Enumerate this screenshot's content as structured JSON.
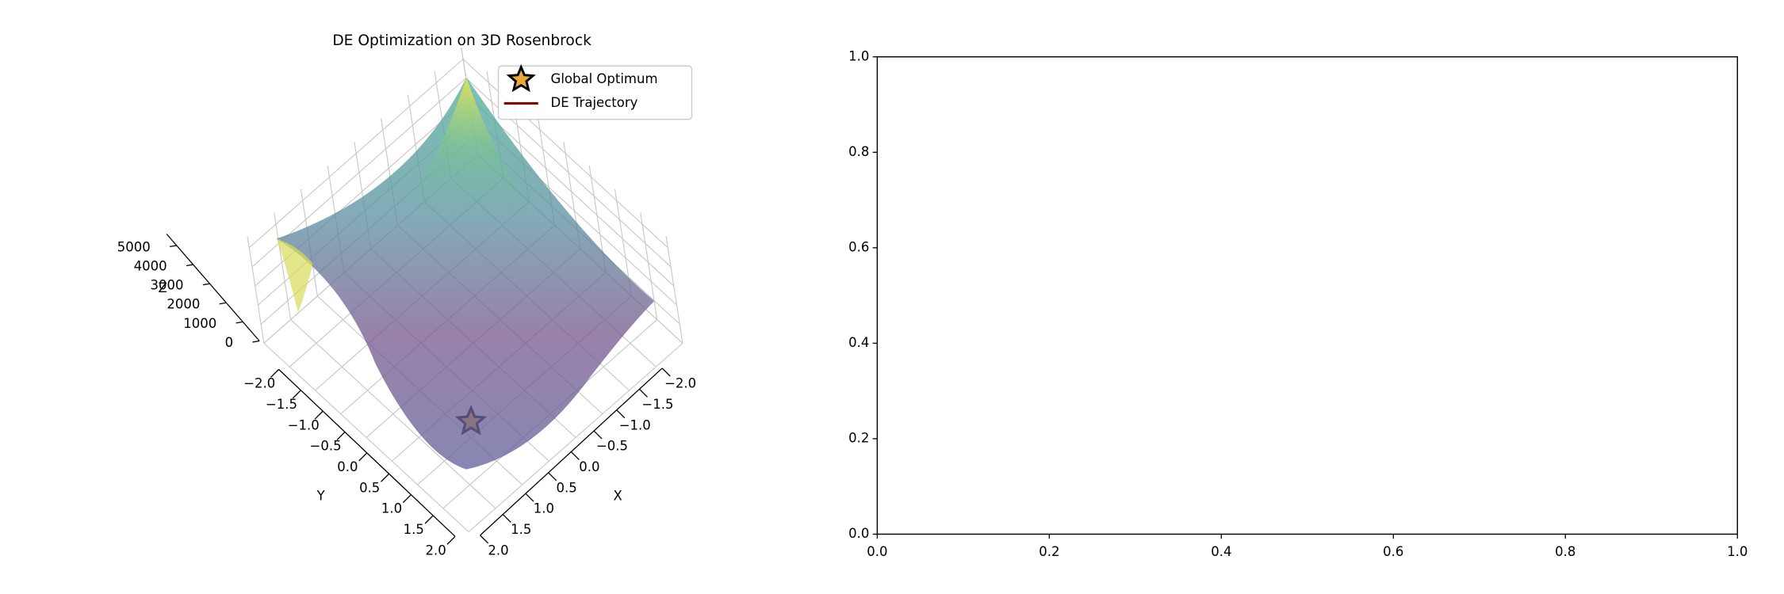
{
  "chart_data": [
    {
      "type": "surface3d",
      "title": "DE Optimization on 3D Rosenbrock",
      "xlabel": "X",
      "ylabel": "Y",
      "zlabel": "Z",
      "xlim": [
        -2,
        2
      ],
      "ylim": [
        -2,
        2
      ],
      "zlim": [
        0,
        5600
      ],
      "xticks": [
        {
          "value": -2,
          "label": "−2.0"
        },
        {
          "value": -1.5,
          "label": "−1.5"
        },
        {
          "value": -1,
          "label": "−1.0"
        },
        {
          "value": -0.5,
          "label": "−0.5"
        },
        {
          "value": 0,
          "label": "0.0"
        },
        0.5,
        {
          "value": 1,
          "label": "1.0"
        },
        1.5,
        {
          "value": 2,
          "label": "2.0"
        }
      ],
      "yticks": [
        {
          "value": -2,
          "label": "−2.0"
        },
        {
          "value": -1.5,
          "label": "−1.5"
        },
        {
          "value": -1,
          "label": "−1.0"
        },
        {
          "value": -0.5,
          "label": "−0.5"
        },
        {
          "value": 0,
          "label": "0.0"
        },
        0.5,
        {
          "value": 1,
          "label": "1.0"
        },
        1.5,
        {
          "value": 2,
          "label": "2.0"
        }
      ],
      "zticks": [
        0,
        1000,
        2000,
        3000,
        4000,
        5000
      ],
      "legend": "upper right",
      "series": [
        {
          "name": "Global Optimum",
          "marker": "star",
          "color": "#e8a93a",
          "x": [
            1
          ],
          "y": [
            1
          ],
          "z": [
            0
          ]
        },
        {
          "name": "DE Trajectory",
          "color": "#8b0000",
          "x": [],
          "y": [],
          "z": []
        }
      ]
    },
    {
      "type": "line",
      "series": [],
      "xlim": [
        0,
        1
      ],
      "ylim": [
        0,
        1
      ],
      "xticks": [
        {
          "value": 0,
          "label": "0.0"
        },
        0.2,
        0.4,
        0.6,
        0.8,
        {
          "value": 1,
          "label": "1.0"
        }
      ],
      "yticks": [
        {
          "value": 0,
          "label": "0.0"
        },
        0.2,
        0.4,
        0.6,
        0.8,
        {
          "value": 1,
          "label": "1.0"
        }
      ]
    }
  ]
}
